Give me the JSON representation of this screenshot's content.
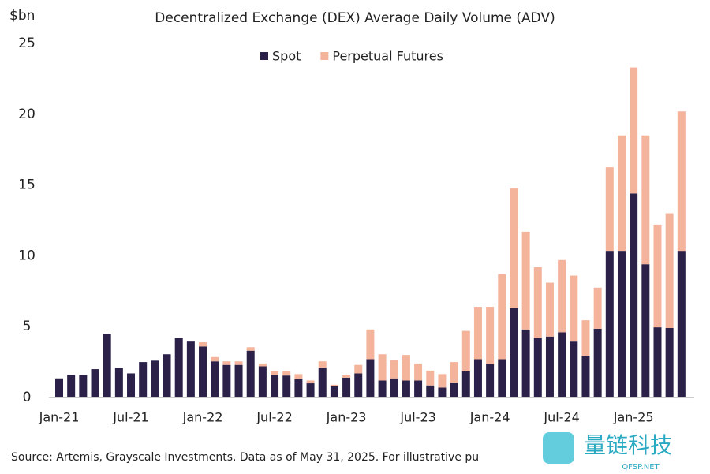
{
  "chart_data": {
    "type": "stacked-bar",
    "title": "Decentralized Exchange (DEX) Average Daily Volume (ADV)",
    "y_label": "$bn",
    "source": "Source: Artemis, Grayscale Investments. Data as of May 31, 2025. For illustrative pu",
    "watermark": "量链科技",
    "watermark_sub": "QFSP.NET",
    "categories": [
      "Jan-21",
      null,
      null,
      null,
      null,
      null,
      "Jul-21",
      null,
      null,
      null,
      null,
      null,
      "Jan-22",
      null,
      null,
      null,
      null,
      null,
      "Jul-22",
      null,
      null,
      null,
      null,
      null,
      "Jan-23",
      null,
      null,
      null,
      null,
      null,
      "Jul-23",
      null,
      null,
      null,
      null,
      null,
      "Jan-24",
      null,
      null,
      null,
      null,
      null,
      "Jul-24",
      null,
      null,
      null,
      null,
      null,
      "Jan-25",
      null,
      null,
      null,
      null
    ],
    "series": [
      {
        "name": "Spot",
        "color": "#2b2148",
        "values": [
          1.35,
          1.6,
          1.6,
          2.0,
          4.5,
          2.1,
          1.7,
          2.5,
          2.6,
          3.05,
          4.2,
          4.0,
          3.6,
          2.55,
          2.3,
          2.3,
          3.3,
          2.2,
          1.6,
          1.55,
          1.3,
          1.0,
          2.1,
          0.8,
          1.4,
          1.7,
          2.7,
          1.2,
          1.35,
          1.2,
          1.2,
          0.85,
          0.7,
          1.05,
          1.85,
          2.7,
          2.35,
          2.7,
          6.3,
          4.8,
          4.2,
          4.3,
          4.6,
          4.0,
          2.95,
          4.85,
          10.35,
          10.35,
          14.4,
          9.4,
          4.95,
          4.9,
          10.35
        ]
      },
      {
        "name": "Perpetual Futures",
        "color": "#f4b49c",
        "values": [
          0,
          0,
          0,
          0,
          0,
          0,
          0,
          0,
          0,
          0,
          0,
          0,
          0.3,
          0.3,
          0.25,
          0.25,
          0.25,
          0.2,
          0.25,
          0.3,
          0.35,
          0.2,
          0.45,
          0.1,
          0.2,
          0.6,
          2.1,
          1.85,
          1.3,
          1.8,
          1.2,
          1.05,
          0.95,
          1.45,
          2.85,
          3.7,
          4.05,
          6.0,
          8.45,
          6.9,
          5.0,
          3.8,
          5.1,
          4.6,
          2.5,
          2.9,
          5.9,
          8.15,
          8.9,
          9.1,
          7.25,
          8.1,
          9.85
        ]
      }
    ],
    "ylim": [
      0,
      25
    ],
    "yticks": [
      0,
      5,
      10,
      15,
      20,
      25
    ],
    "grid": false,
    "legend": "top"
  }
}
